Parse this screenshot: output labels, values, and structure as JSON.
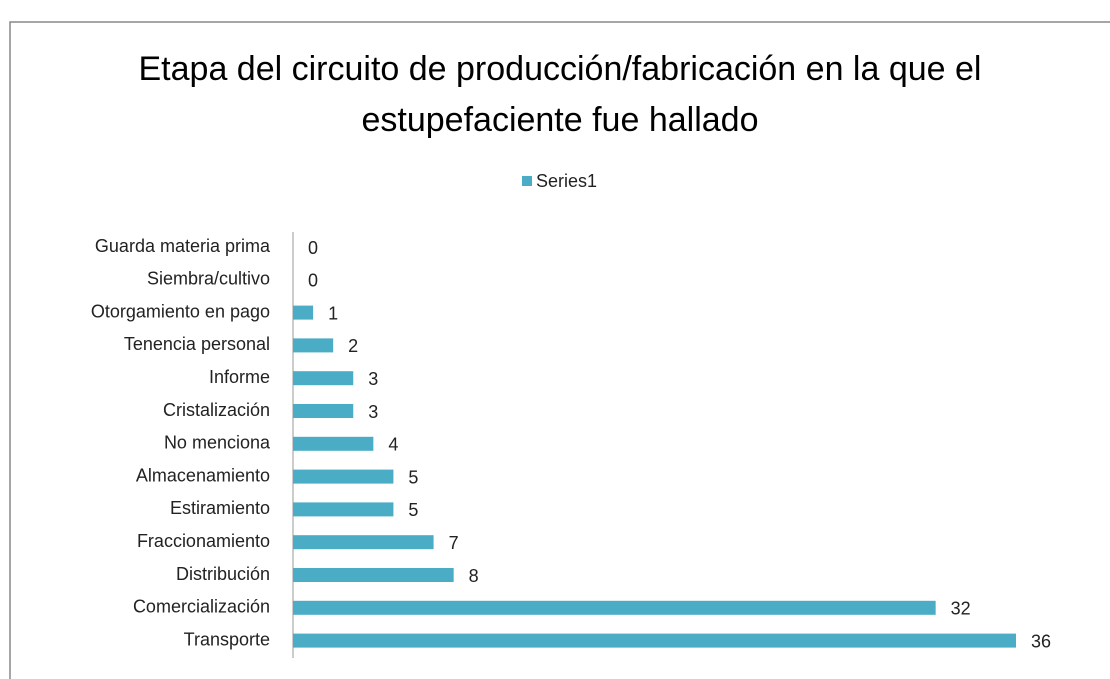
{
  "chart_data": {
    "type": "bar",
    "orientation": "horizontal",
    "title": "Etapa del circuito de producción/fabricación en la que el estupefaciente fue hallado",
    "categories": [
      "Guarda materia prima",
      "Siembra/cultivo",
      "Otorgamiento en pago",
      "Tenencia personal",
      "Informe",
      "Cristalización",
      "No menciona",
      "Almacenamiento",
      "Estiramiento",
      "Fraccionamiento",
      "Distribución",
      "Comercialización",
      "Transporte"
    ],
    "series": [
      {
        "name": "Series1",
        "color": "#4bacc6",
        "values": [
          0,
          0,
          1,
          2,
          3,
          3,
          4,
          5,
          5,
          7,
          8,
          32,
          36
        ]
      }
    ],
    "xlim": [
      0,
      36
    ],
    "legend": "top"
  }
}
